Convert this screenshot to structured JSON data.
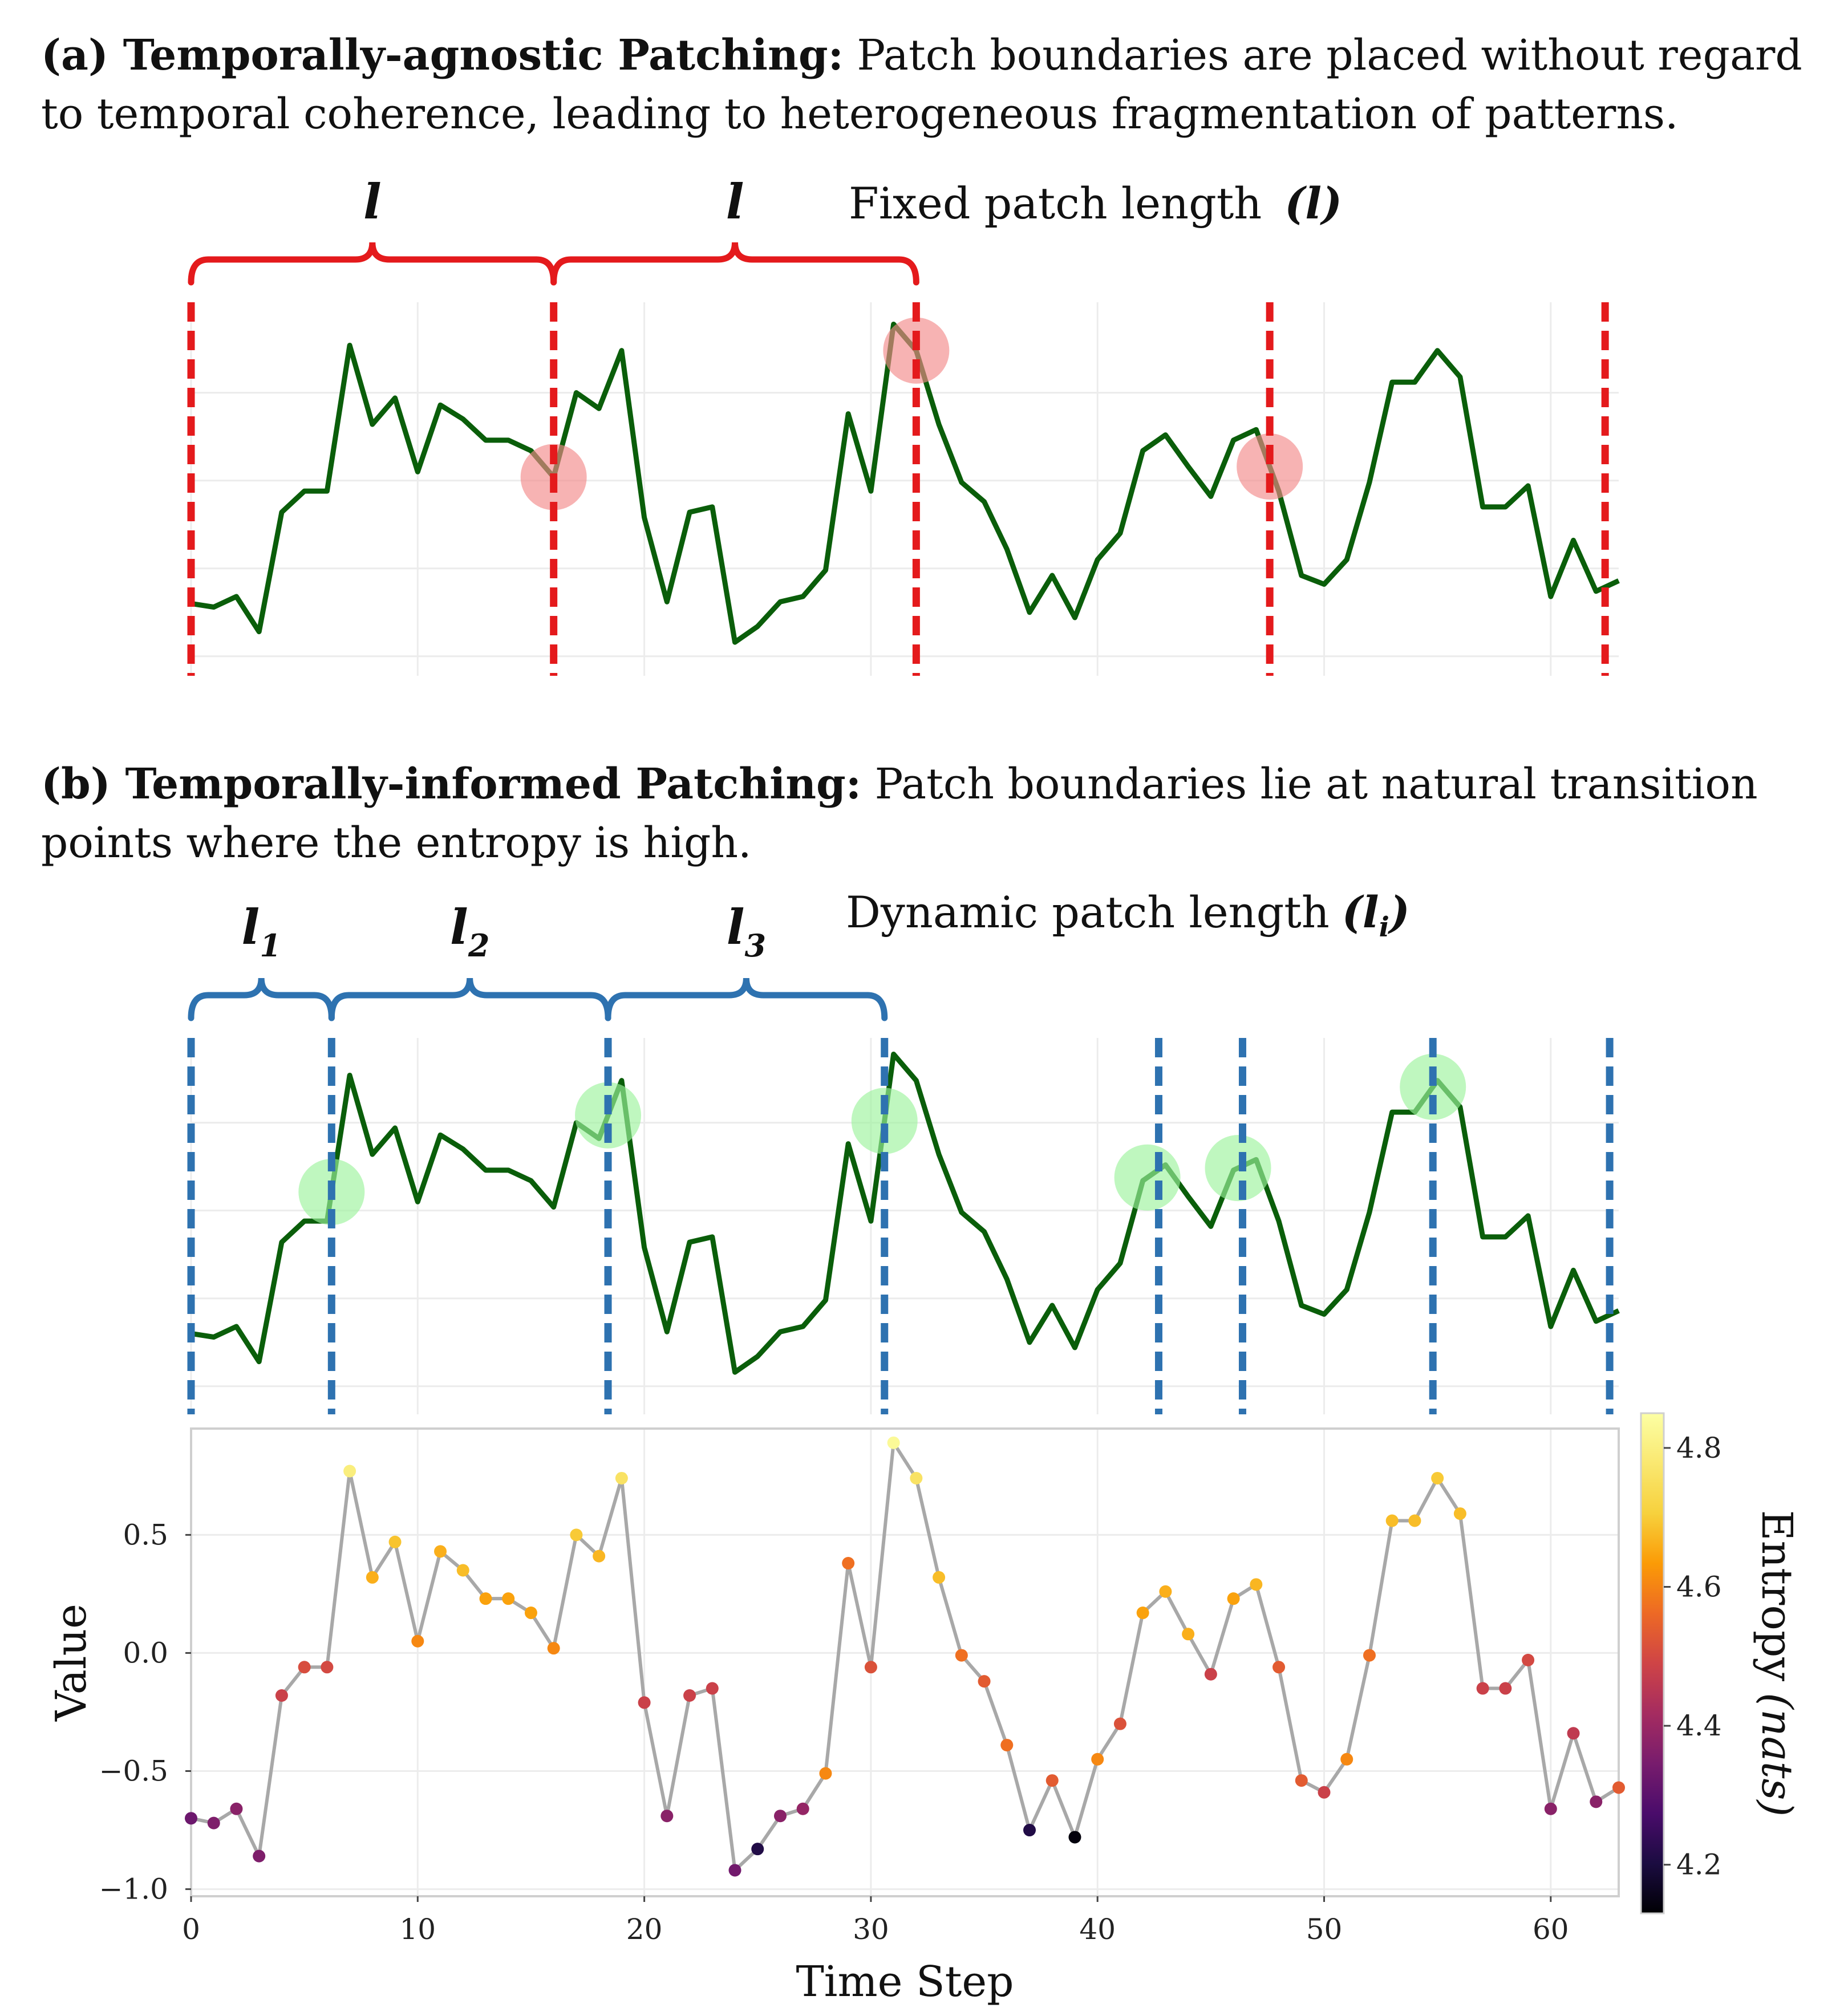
{
  "panel_a": {
    "caption_bold": "(a) Temporally-agnostic Patching:",
    "caption_line1": " Patch boundaries are placed without regard",
    "caption_line2": "to temporal coherence, leading to heterogeneous fragmentation of patterns.",
    "note": "Fixed patch length",
    "note_symbol": "(l)",
    "brace_labels": [
      "l",
      "l"
    ],
    "boundaries": [
      0,
      16,
      32,
      47.6,
      62.4
    ],
    "brace_spans": [
      [
        0,
        16
      ],
      [
        16,
        32
      ]
    ],
    "fragment_points": [
      16,
      32,
      47.6
    ],
    "colors": {
      "boundary": "#e41a1c",
      "marker": "#f28b8b",
      "line": "#0a5e0a"
    }
  },
  "panel_b": {
    "caption_bold": "(b) Temporally-informed Patching:",
    "caption_line1": " Patch boundaries lie at natural transition",
    "caption_line2": "points   where the entropy is high.",
    "note": "Dynamic patch length",
    "note_symbol": "(l",
    "note_sub": "i",
    "note_close": ")",
    "brace_labels": [
      {
        "main": "l",
        "sub": "1"
      },
      {
        "main": "l",
        "sub": "2"
      },
      {
        "main": "l",
        "sub": "3"
      }
    ],
    "boundaries": [
      0,
      6.2,
      18.4,
      30.6,
      42.7,
      46.4,
      54.8,
      62.6
    ],
    "brace_spans": [
      [
        0,
        6.2
      ],
      [
        6.2,
        18.4
      ],
      [
        18.4,
        30.6
      ]
    ],
    "transition_points": [
      6.2,
      18.4,
      30.6,
      42.2,
      46.2,
      54.8
    ],
    "colors": {
      "boundary": "#2e72b0",
      "marker": "#9df29d",
      "line": "#0a5e0a"
    }
  },
  "chart_data": {
    "type": "scatter",
    "xlabel": "Time Step",
    "ylabel": "Value",
    "xlim": [
      0,
      63
    ],
    "ylim": [
      -1.03,
      0.95
    ],
    "xticks": [
      0,
      10,
      20,
      30,
      40,
      50,
      60
    ],
    "yticks": [
      -1.0,
      -0.5,
      0.0,
      0.5
    ],
    "ytick_labels": [
      "−1.0",
      "−0.5",
      "0.0",
      "0.5"
    ],
    "x": [
      0,
      1,
      2,
      3,
      4,
      5,
      6,
      7,
      8,
      9,
      10,
      11,
      12,
      13,
      14,
      15,
      16,
      17,
      18,
      19,
      20,
      21,
      22,
      23,
      24,
      25,
      26,
      27,
      28,
      29,
      30,
      31,
      32,
      33,
      34,
      35,
      36,
      37,
      38,
      39,
      40,
      41,
      42,
      43,
      44,
      45,
      46,
      47,
      48,
      49,
      50,
      51,
      52,
      53,
      54,
      55,
      56,
      57,
      58,
      59,
      60,
      61,
      62,
      63
    ],
    "values": [
      -0.7,
      -0.72,
      -0.66,
      -0.86,
      -0.18,
      -0.06,
      -0.06,
      0.77,
      0.32,
      0.47,
      0.05,
      0.43,
      0.35,
      0.23,
      0.23,
      0.17,
      0.02,
      0.5,
      0.41,
      0.74,
      -0.21,
      -0.69,
      -0.18,
      -0.15,
      -0.92,
      -0.83,
      -0.69,
      -0.66,
      -0.51,
      0.38,
      -0.06,
      0.89,
      0.74,
      0.32,
      -0.01,
      -0.12,
      -0.39,
      -0.75,
      -0.54,
      -0.78,
      -0.45,
      -0.3,
      0.17,
      0.26,
      0.08,
      -0.09,
      0.23,
      0.29,
      -0.06,
      -0.54,
      -0.59,
      -0.45,
      -0.01,
      0.56,
      0.56,
      0.74,
      0.59,
      -0.15,
      -0.15,
      -0.03,
      -0.66,
      -0.34,
      -0.63,
      -0.57
    ],
    "entropy": [
      4.35,
      4.38,
      4.4,
      4.38,
      4.52,
      4.55,
      4.54,
      4.82,
      4.72,
      4.75,
      4.66,
      4.72,
      4.74,
      4.7,
      4.7,
      4.7,
      4.66,
      4.76,
      4.73,
      4.8,
      4.52,
      4.4,
      4.52,
      4.52,
      4.36,
      4.22,
      4.4,
      4.42,
      4.66,
      4.62,
      4.56,
      4.84,
      4.8,
      4.74,
      4.62,
      4.58,
      4.62,
      4.22,
      4.58,
      4.14,
      4.66,
      4.56,
      4.7,
      4.72,
      4.72,
      4.52,
      4.7,
      4.73,
      4.58,
      4.58,
      4.52,
      4.66,
      4.62,
      4.74,
      4.74,
      4.76,
      4.74,
      4.52,
      4.52,
      4.54,
      4.4,
      4.5,
      4.4,
      4.58
    ],
    "colorbar": {
      "label": "Entropy",
      "label_unit": "(nats)",
      "range": [
        4.13,
        4.85
      ],
      "ticks": [
        4.2,
        4.4,
        4.6,
        4.8
      ],
      "tick_labels": [
        "4.2",
        "4.4",
        "4.6",
        "4.8"
      ],
      "colormap": "inferno"
    },
    "grid": true,
    "line_color": "#a8a8a8"
  }
}
